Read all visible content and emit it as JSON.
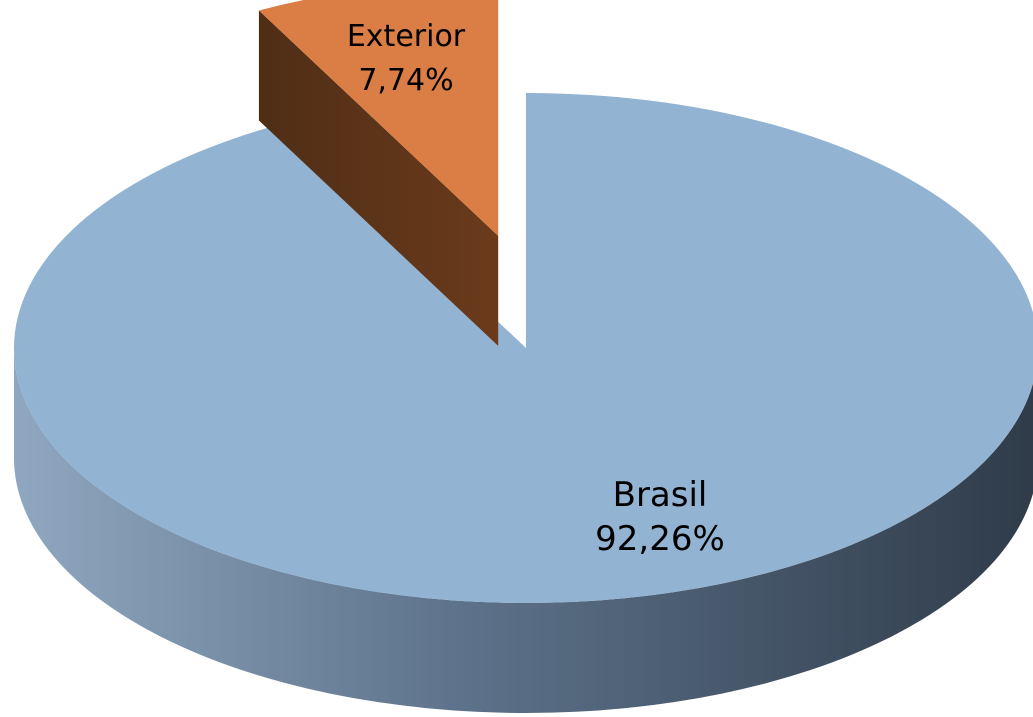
{
  "chart_data": {
    "type": "pie",
    "title": "",
    "slices": [
      {
        "label": "Brasil",
        "value": 92.26,
        "value_label": "92,26%",
        "color": "#93b3d2"
      },
      {
        "label": "Exterior",
        "value": 7.74,
        "value_label": "7,74%",
        "color": "#da7e46"
      }
    ],
    "style": "3d-exploded",
    "legend": "none"
  }
}
